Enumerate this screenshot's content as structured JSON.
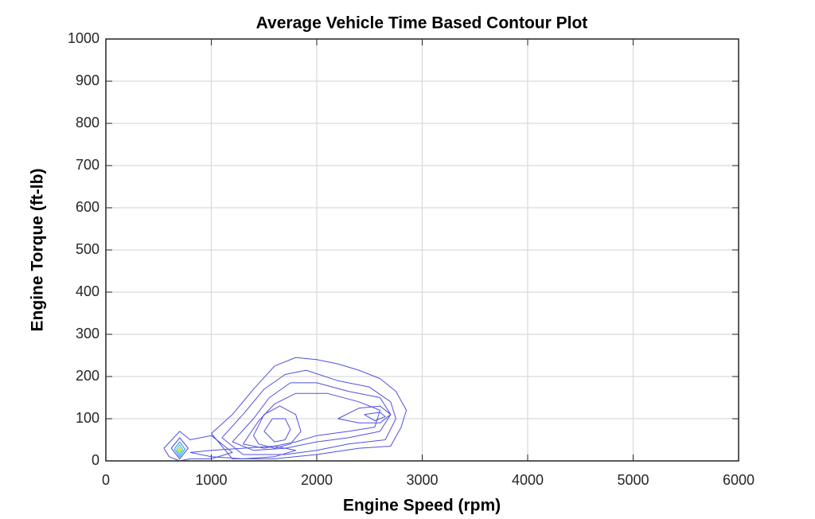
{
  "chart_data": {
    "type": "contour",
    "title": "Average Vehicle Time Based Contour Plot",
    "xlabel": "Engine Speed (rpm)",
    "ylabel": "Engine Torque (ft-lb)",
    "xlim": [
      0,
      6000
    ],
    "ylim": [
      0,
      1000
    ],
    "xticks": [
      0,
      1000,
      2000,
      3000,
      4000,
      5000,
      6000
    ],
    "yticks": [
      0,
      100,
      200,
      300,
      400,
      500,
      600,
      700,
      800,
      900,
      1000
    ],
    "grid": true,
    "contours": [
      {
        "color": "#5050e0",
        "x": [
          1000,
          1200,
          1400,
          1600,
          1800,
          2000,
          2200,
          2400,
          2600,
          2750,
          2850,
          2800,
          2700,
          2400,
          2000,
          1600,
          1200,
          1000
        ],
        "y": [
          65,
          110,
          170,
          225,
          245,
          240,
          230,
          215,
          195,
          165,
          120,
          80,
          35,
          30,
          15,
          5,
          5,
          65
        ]
      },
      {
        "color": "#5050e0",
        "x": [
          1100,
          1300,
          1500,
          1700,
          1900,
          2200,
          2500,
          2700,
          2750,
          2650,
          2300,
          2000,
          1700,
          1300,
          1100
        ],
        "y": [
          55,
          110,
          170,
          205,
          215,
          190,
          175,
          140,
          100,
          50,
          40,
          25,
          15,
          15,
          55
        ]
      },
      {
        "color": "#5050e0",
        "x": [
          1200,
          1400,
          1550,
          1750,
          2000,
          2300,
          2600,
          2700,
          2600,
          2300,
          2000,
          1700,
          1400,
          1200
        ],
        "y": [
          45,
          100,
          150,
          185,
          185,
          165,
          150,
          110,
          70,
          55,
          45,
          30,
          25,
          45
        ]
      },
      {
        "color": "#5050e0",
        "x": [
          1300,
          1450,
          1600,
          1800,
          2100,
          2400,
          2600,
          2550,
          2300,
          2000,
          1800,
          1500,
          1300
        ],
        "y": [
          40,
          95,
          135,
          160,
          160,
          140,
          120,
          80,
          70,
          60,
          45,
          30,
          40
        ]
      },
      {
        "color": "#5050e0",
        "x": [
          1400,
          1500,
          1650,
          1800,
          1850,
          1750,
          1600,
          1450,
          1400
        ],
        "y": [
          60,
          110,
          130,
          110,
          70,
          40,
          30,
          40,
          60
        ]
      },
      {
        "color": "#5050e0",
        "x": [
          1500,
          1580,
          1700,
          1750,
          1700,
          1600,
          1500
        ],
        "y": [
          70,
          100,
          100,
          75,
          50,
          45,
          70
        ]
      },
      {
        "color": "#5050e0",
        "x": [
          2200,
          2400,
          2600,
          2700,
          2600,
          2400,
          2200
        ],
        "y": [
          100,
          125,
          130,
          110,
          90,
          90,
          100
        ]
      },
      {
        "color": "#5050e0",
        "x": [
          2450,
          2600,
          2650,
          2550,
          2450
        ],
        "y": [
          110,
          115,
          105,
          95,
          110
        ]
      },
      {
        "color": "#5050e0",
        "x": [
          800,
          1000,
          1300,
          1600,
          1800,
          1600,
          1300,
          1000,
          800
        ],
        "y": [
          20,
          25,
          30,
          35,
          25,
          10,
          5,
          10,
          20
        ]
      },
      {
        "color": "#5050e0",
        "x": [
          550,
          700,
          800,
          1000,
          1200,
          1000,
          800,
          700,
          600,
          550
        ],
        "y": [
          30,
          70,
          50,
          60,
          20,
          5,
          5,
          0,
          10,
          30
        ]
      },
      {
        "color": "#4040e0",
        "x": [
          620,
          700,
          780,
          700,
          620
        ],
        "y": [
          30,
          55,
          30,
          5,
          30
        ]
      },
      {
        "color": "#2090f0",
        "x": [
          650,
          700,
          750,
          700,
          650
        ],
        "y": [
          28,
          45,
          28,
          10,
          28
        ]
      },
      {
        "color": "#30c0c0",
        "x": [
          670,
          700,
          730,
          700,
          670
        ],
        "y": [
          27,
          38,
          27,
          15,
          27
        ]
      },
      {
        "color": "#a0e040",
        "x": [
          685,
          700,
          715,
          700,
          685
        ],
        "y": [
          26,
          32,
          26,
          20,
          26
        ]
      },
      {
        "color": "#f0e020",
        "x": [
          693,
          700,
          707,
          700,
          693
        ],
        "y": [
          26,
          28,
          26,
          23,
          26
        ]
      }
    ]
  }
}
